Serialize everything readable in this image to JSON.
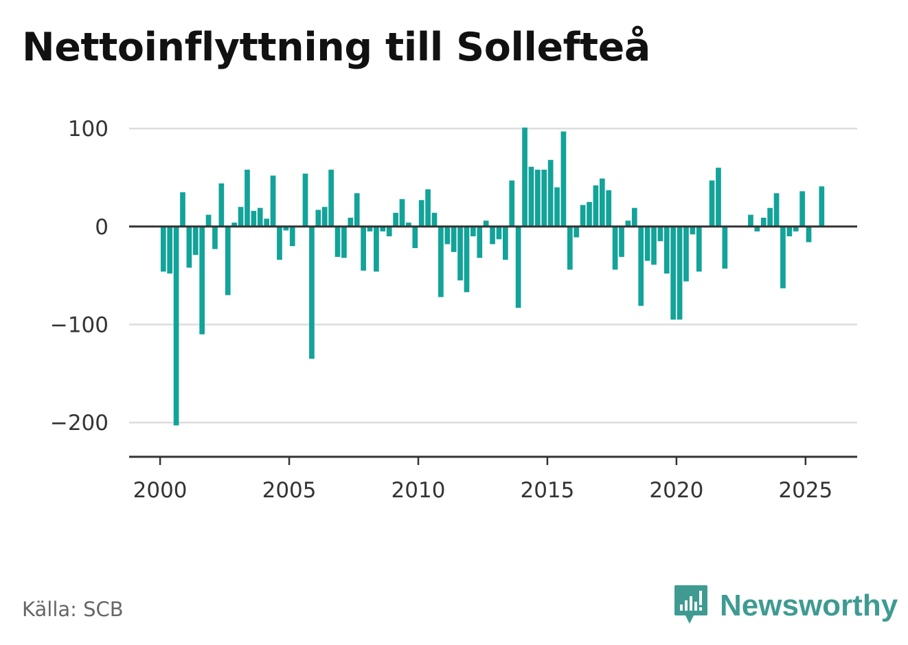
{
  "title": "Nettoinflyttning till Sollefteå",
  "source": "Källa: SCB",
  "brand": {
    "name": "Newsworthy",
    "icon": "newsworthy-logo-icon",
    "color": "#3f9b91"
  },
  "colors": {
    "bar": "#12a399",
    "grid": "#dddddd",
    "axis": "#333333"
  },
  "chart_data": {
    "type": "bar",
    "title": "Nettoinflyttning till Sollefteå",
    "xlabel": "",
    "ylabel": "",
    "ylim": [
      -235,
      105
    ],
    "xlim": [
      1998.8,
      2027.0
    ],
    "grid": true,
    "yticks": [
      100,
      0,
      -100,
      -200
    ],
    "ytick_labels": [
      "100",
      "0",
      "−100",
      "−200"
    ],
    "xticks": [
      2000,
      2005,
      2010,
      2015,
      2020,
      2025
    ],
    "xtick_labels": [
      "2000",
      "2005",
      "2010",
      "2015",
      "2020",
      "2025"
    ],
    "series": [
      {
        "quarters": [
          "2000 Q1",
          "2000 Q2",
          "2000 Q3",
          "2000 Q4",
          "2001 Q1",
          "2001 Q2",
          "2001 Q3",
          "2001 Q4",
          "2002 Q1",
          "2002 Q2",
          "2002 Q3",
          "2002 Q4",
          "2003 Q1",
          "2003 Q2",
          "2003 Q3",
          "2003 Q4",
          "2004 Q1",
          "2004 Q2",
          "2004 Q3",
          "2004 Q4",
          "2005 Q1",
          "2005 Q2",
          "2005 Q3",
          "2005 Q4",
          "2006 Q1",
          "2006 Q2",
          "2006 Q3",
          "2006 Q4",
          "2007 Q1",
          "2007 Q2",
          "2007 Q3",
          "2007 Q4",
          "2008 Q1",
          "2008 Q2",
          "2008 Q3",
          "2008 Q4",
          "2009 Q1",
          "2009 Q2",
          "2009 Q3",
          "2009 Q4",
          "2010 Q1",
          "2010 Q2",
          "2010 Q3",
          "2010 Q4",
          "2011 Q1",
          "2011 Q2",
          "2011 Q3",
          "2011 Q4",
          "2012 Q1",
          "2012 Q2",
          "2012 Q3",
          "2012 Q4",
          "2013 Q1",
          "2013 Q2",
          "2013 Q3",
          "2013 Q4",
          "2014 Q1",
          "2014 Q2",
          "2014 Q3",
          "2014 Q4",
          "2015 Q1",
          "2015 Q2",
          "2015 Q3",
          "2015 Q4",
          "2016 Q1",
          "2016 Q2",
          "2016 Q3",
          "2016 Q4",
          "2017 Q1",
          "2017 Q2",
          "2017 Q3",
          "2017 Q4",
          "2018 Q1",
          "2018 Q2",
          "2018 Q3",
          "2018 Q4",
          "2019 Q1",
          "2019 Q2",
          "2019 Q3",
          "2019 Q4",
          "2020 Q1",
          "2020 Q2",
          "2020 Q3",
          "2020 Q4",
          "2021 Q1",
          "2021 Q2",
          "2021 Q3",
          "2021 Q4",
          "2022 Q1",
          "2022 Q2",
          "2022 Q3",
          "2022 Q4",
          "2023 Q1",
          "2023 Q2",
          "2023 Q3",
          "2023 Q4",
          "2024 Q1",
          "2024 Q2",
          "2024 Q3",
          "2024 Q4",
          "2025 Q1",
          "2025 Q2",
          "2025 Q3"
        ],
        "values": [
          -46,
          -48,
          -203,
          35,
          -42,
          -29,
          -110,
          12,
          -23,
          44,
          -70,
          4,
          20,
          58,
          16,
          19,
          8,
          52,
          -34,
          -4,
          -20,
          0,
          54,
          -135,
          17,
          20,
          58,
          -31,
          -32,
          9,
          34,
          -45,
          -5,
          -46,
          -5,
          -10,
          14,
          28,
          4,
          -22,
          27,
          38,
          14,
          -72,
          -18,
          -26,
          -55,
          -67,
          -10,
          -32,
          6,
          -18,
          -13,
          -34,
          47,
          -83,
          101,
          61,
          58,
          58,
          68,
          40,
          97,
          -44,
          -11,
          22,
          25,
          42,
          49,
          37,
          -44,
          -31,
          6,
          19,
          -81,
          -35,
          -39,
          -15,
          -48,
          -95,
          -95,
          -56,
          -8,
          -46,
          -1,
          47,
          60,
          -43,
          0,
          0,
          0,
          12,
          -5,
          9,
          19,
          34,
          -63,
          -10,
          -5,
          36,
          -16,
          -1,
          41
        ]
      }
    ]
  }
}
